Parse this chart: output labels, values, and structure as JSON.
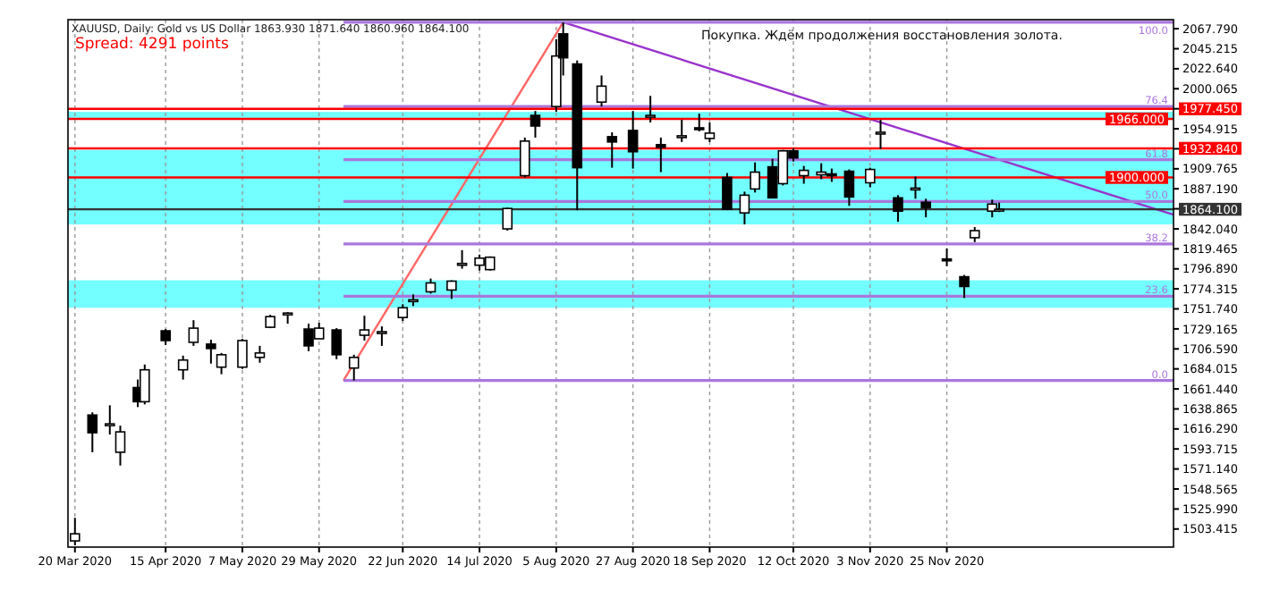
{
  "chart_data": {
    "type": "candlestick",
    "title": "XAUUSD, Daily:  Gold vs US Dollar  1863.930 1871.640 1860.960 1864.100",
    "subtitle": "Spread: 4291 points",
    "annotations": [
      "Покупка. Ждём продолжения восстановления золота."
    ],
    "color": "#000000",
    "x": [
      "2020-03-20",
      "2020-03-25",
      "2020-03-30",
      "2020-04-02",
      "2020-04-07",
      "2020-04-09",
      "2020-04-15",
      "2020-04-20",
      "2020-04-23",
      "2020-04-28",
      "2020-05-01",
      "2020-05-07",
      "2020-05-12",
      "2020-05-15",
      "2020-05-20",
      "2020-05-26",
      "2020-05-29",
      "2020-06-03",
      "2020-06-08",
      "2020-06-11",
      "2020-06-16",
      "2020-06-22",
      "2020-06-25",
      "2020-06-30",
      "2020-07-06",
      "2020-07-09",
      "2020-07-14",
      "2020-07-17",
      "2020-07-22",
      "2020-07-27",
      "2020-07-30",
      "2020-08-05",
      "2020-08-07",
      "2020-08-11",
      "2020-08-18",
      "2020-08-21",
      "2020-08-27",
      "2020-09-01",
      "2020-09-04",
      "2020-09-10",
      "2020-09-15",
      "2020-09-18",
      "2020-09-23",
      "2020-09-28",
      "2020-10-01",
      "2020-10-06",
      "2020-10-09",
      "2020-10-12",
      "2020-10-15",
      "2020-10-20",
      "2020-10-23",
      "2020-10-28",
      "2020-11-03",
      "2020-11-06",
      "2020-11-11",
      "2020-11-16",
      "2020-11-19",
      "2020-11-25",
      "2020-11-30",
      "2020-12-03",
      "2020-12-08",
      "2020-12-10"
    ],
    "ohlc": [
      [
        1490,
        1516,
        1485,
        1498
      ],
      [
        1632,
        1635,
        1590,
        1612
      ],
      [
        1622,
        1643,
        1610,
        1622
      ],
      [
        1590,
        1620,
        1575,
        1613
      ],
      [
        1663,
        1672,
        1641,
        1647
      ],
      [
        1647,
        1689,
        1644,
        1683
      ],
      [
        1727,
        1729,
        1711,
        1716
      ],
      [
        1683,
        1699,
        1672,
        1694
      ],
      [
        1714,
        1739,
        1710,
        1730
      ],
      [
        1712,
        1717,
        1690,
        1707
      ],
      [
        1686,
        1702,
        1678,
        1700
      ],
      [
        1686,
        1718,
        1684,
        1716
      ],
      [
        1697,
        1710,
        1691,
        1702
      ],
      [
        1731,
        1745,
        1730,
        1743
      ],
      [
        1745,
        1748,
        1735,
        1747
      ],
      [
        1729,
        1735,
        1704,
        1710
      ],
      [
        1718,
        1736,
        1718,
        1730
      ],
      [
        1728,
        1730,
        1695,
        1700
      ],
      [
        1685,
        1700,
        1671,
        1697
      ],
      [
        1722,
        1744,
        1716,
        1728
      ],
      [
        1725,
        1732,
        1710,
        1726
      ],
      [
        1742,
        1757,
        1738,
        1753
      ],
      [
        1761,
        1768,
        1755,
        1762
      ],
      [
        1771,
        1786,
        1769,
        1781
      ],
      [
        1773,
        1784,
        1763,
        1783
      ],
      [
        1803,
        1818,
        1797,
        1803
      ],
      [
        1801,
        1813,
        1795,
        1809
      ],
      [
        1796,
        1811,
        1795,
        1810
      ],
      [
        1842,
        1866,
        1840,
        1865
      ],
      [
        1902,
        1945,
        1900,
        1941
      ],
      [
        1970,
        1975,
        1945,
        1958
      ],
      [
        1980,
        2056,
        1974,
        2037
      ],
      [
        2062,
        2075,
        2015,
        2035
      ],
      [
        2028,
        2032,
        1863,
        1911
      ],
      [
        1985,
        2015,
        1980,
        2003
      ],
      [
        1946,
        1951,
        1911,
        1940
      ],
      [
        1953,
        1975,
        1910,
        1929
      ],
      [
        1968,
        1992,
        1962,
        1970
      ],
      [
        1937,
        1945,
        1906,
        1934
      ],
      [
        1945,
        1965,
        1940,
        1947
      ],
      [
        1956,
        1972,
        1952,
        1954
      ],
      [
        1944,
        1962,
        1940,
        1950
      ],
      [
        1900,
        1905,
        1863,
        1864
      ],
      [
        1860,
        1884,
        1847,
        1880
      ],
      [
        1887,
        1917,
        1883,
        1906
      ],
      [
        1912,
        1921,
        1877,
        1877
      ],
      [
        1893,
        1931,
        1891,
        1930
      ],
      [
        1930,
        1933,
        1918,
        1922
      ],
      [
        1902,
        1913,
        1893,
        1908
      ],
      [
        1903,
        1916,
        1898,
        1906
      ],
      [
        1904,
        1910,
        1895,
        1902
      ],
      [
        1907,
        1909,
        1868,
        1878
      ],
      [
        1894,
        1911,
        1889,
        1909
      ],
      [
        1949,
        1965,
        1932,
        1951
      ],
      [
        1877,
        1880,
        1850,
        1862
      ],
      [
        1887,
        1901,
        1876,
        1888
      ],
      [
        1872,
        1876,
        1855,
        1866
      ],
      [
        1808,
        1820,
        1800,
        1807
      ],
      [
        1788,
        1790,
        1764,
        1777
      ],
      [
        1832,
        1844,
        1827,
        1840
      ],
      [
        1862,
        1875,
        1855,
        1870
      ],
      [
        1863.93,
        1871.64,
        1860.96,
        1864.1
      ]
    ],
    "series": [
      {
        "type": "line",
        "color": "#9933cc",
        "x": [
          "2020-08-07",
          "2021-01-29"
        ],
        "values": [
          2075,
          1858
        ]
      },
      {
        "type": "line",
        "color": "#ff6666",
        "x": [
          "2020-06-05",
          "2020-08-07"
        ],
        "values": [
          1671,
          2075
        ]
      },
      {
        "type": "line",
        "name": "100.0",
        "color": "#aa77dd",
        "x": [
          "2020-06-05",
          "2021-01-29"
        ],
        "values": [
          2075,
          2075
        ]
      },
      {
        "type": "line",
        "name": "76.4",
        "color": "#aa77dd",
        "x": [
          "2020-06-05",
          "2021-01-29"
        ],
        "values": [
          1980,
          1980
        ]
      },
      {
        "type": "line",
        "name": "61.8",
        "color": "#aa77dd",
        "x": [
          "2020-06-05",
          "2021-01-29"
        ],
        "values": [
          1920,
          1920
        ]
      },
      {
        "type": "line",
        "name": "50.0",
        "color": "#aa77dd",
        "x": [
          "2020-06-05",
          "2021-01-29"
        ],
        "values": [
          1873,
          1873
        ]
      },
      {
        "type": "line",
        "name": "38.2",
        "color": "#aa77dd",
        "x": [
          "2020-06-05",
          "2021-01-29"
        ],
        "values": [
          1825,
          1825
        ]
      },
      {
        "type": "line",
        "name": "23.6",
        "color": "#aa77dd",
        "x": [
          "2020-06-05",
          "2021-01-29"
        ],
        "values": [
          1766,
          1766
        ]
      },
      {
        "type": "line",
        "name": "0.0",
        "color": "#aa77dd",
        "x": [
          "2020-06-05",
          "2021-01-29"
        ],
        "values": [
          1671,
          1671
        ]
      }
    ],
    "ref_lines": [
      {
        "axis": "y",
        "value": 1977.45,
        "label": "1977.450",
        "color": "#ff0000"
      },
      {
        "axis": "y",
        "value": 1966,
        "label": "1966.000",
        "color": "#ff0000"
      },
      {
        "axis": "y",
        "value": 1932.84,
        "label": "1932.840",
        "color": "#ff0000"
      },
      {
        "axis": "y",
        "value": 1900,
        "label": "1900.000",
        "color": "#ff0000"
      },
      {
        "axis": "y",
        "value": 1864.1,
        "label": "1864.100",
        "color": "#333333"
      }
    ],
    "bands": [
      {
        "axis": "y",
        "from": 1965,
        "to": 1974,
        "color": "#00ffff"
      },
      {
        "axis": "y",
        "from": 1847,
        "to": 1931,
        "color": "#00ffff"
      },
      {
        "axis": "y",
        "from": 1753,
        "to": 1784,
        "color": "#00ffff"
      }
    ],
    "xlim": [
      "2020-03-18",
      "2021-01-29"
    ],
    "xticks": [
      {
        "value": "2020-03-20",
        "label": "20 Mar 2020"
      },
      {
        "value": "2020-04-15",
        "label": "15 Apr 2020"
      },
      {
        "value": "2020-05-07",
        "label": "7 May 2020"
      },
      {
        "value": "2020-05-29",
        "label": "29 May 2020"
      },
      {
        "value": "2020-06-22",
        "label": "22 Jun 2020"
      },
      {
        "value": "2020-07-14",
        "label": "14 Jul 2020"
      },
      {
        "value": "2020-08-05",
        "label": "5 Aug 2020"
      },
      {
        "value": "2020-08-27",
        "label": "27 Aug 2020"
      },
      {
        "value": "2020-09-18",
        "label": "18 Sep 2020"
      },
      {
        "value": "2020-10-12",
        "label": "12 Oct 2020"
      },
      {
        "value": "2020-11-03",
        "label": "3 Nov 2020"
      },
      {
        "value": "2020-11-25",
        "label": "25 Nov 2020"
      }
    ],
    "ylim": [
      1483,
      2078
    ],
    "yticks": [
      {
        "value": 1503.415,
        "label": "1503.415"
      },
      {
        "value": 1525.99,
        "label": "1525.990"
      },
      {
        "value": 1548.565,
        "label": "1548.565"
      },
      {
        "value": 1571.14,
        "label": "1571.140"
      },
      {
        "value": 1593.715,
        "label": "1593.715"
      },
      {
        "value": 1616.29,
        "label": "1616.290"
      },
      {
        "value": 1638.865,
        "label": "1638.865"
      },
      {
        "value": 1661.44,
        "label": "1661.440"
      },
      {
        "value": 1684.015,
        "label": "1684.015"
      },
      {
        "value": 1706.59,
        "label": "1706.590"
      },
      {
        "value": 1729.165,
        "label": "1729.165"
      },
      {
        "value": 1751.74,
        "label": "1751.740"
      },
      {
        "value": 1774.315,
        "label": "1774.315"
      },
      {
        "value": 1796.89,
        "label": "1796.890"
      },
      {
        "value": 1819.465,
        "label": "1819.465"
      },
      {
        "value": 1842.04,
        "label": "1842.040"
      },
      {
        "value": 1864.615,
        "label": null
      },
      {
        "value": 1887.19,
        "label": "1887.190"
      },
      {
        "value": 1909.765,
        "label": "1909.765"
      },
      {
        "value": 1932.34,
        "label": null
      },
      {
        "value": 1954.915,
        "label": "1954.915"
      },
      {
        "value": 1977.49,
        "label": null
      },
      {
        "value": 2000.065,
        "label": "2000.065"
      },
      {
        "value": 2022.64,
        "label": "2022.640"
      },
      {
        "value": 2045.215,
        "label": "2045.215"
      },
      {
        "value": 2067.79,
        "label": "2067.790"
      }
    ],
    "grid": "x",
    "marker": "none"
  }
}
